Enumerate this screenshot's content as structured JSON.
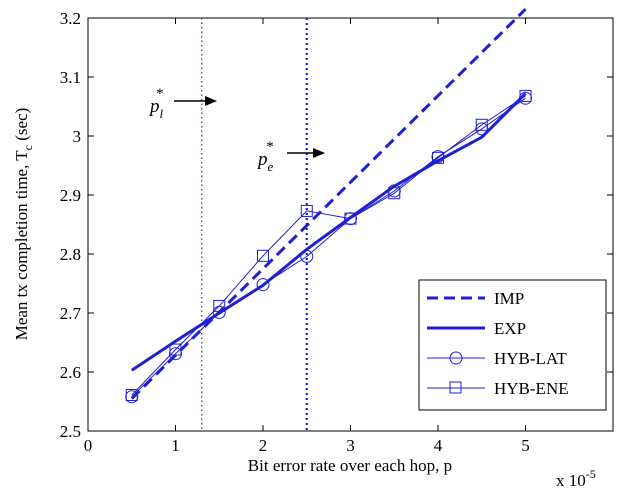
{
  "chart_data": {
    "type": "line",
    "title": "",
    "xlabel": "Bit error rate over each hop, p",
    "ylabel": "Mean tx completion time, T",
    "ylabel_sub": "c",
    "ylabel_unit": " (sec)",
    "x_multiplier": "x 10",
    "x_multiplier_exp": "-5",
    "xlim": [
      0,
      6
    ],
    "ylim": [
      2.5,
      3.2
    ],
    "xticks": [
      "0",
      "1",
      "2",
      "3",
      "4",
      "5"
    ],
    "yticks": [
      "2.5",
      "2.6",
      "2.7",
      "2.8",
      "2.9",
      "3",
      "3.1",
      "3.2"
    ],
    "grid": false,
    "legend_position": "bottom-right",
    "series": [
      {
        "name": "IMP",
        "style": "dashed",
        "marker": "none",
        "color": "#1f1fd6",
        "x": [
          0.5,
          5.0
        ],
        "y": [
          2.555,
          3.215
        ]
      },
      {
        "name": "EXP",
        "style": "solid-thick",
        "marker": "none",
        "color": "#1f1fd6",
        "x": [
          0.5,
          1.0,
          1.5,
          2.0,
          2.5,
          3.0,
          3.5,
          4.0,
          4.5,
          5.0
        ],
        "y": [
          2.603,
          2.652,
          2.7,
          2.747,
          2.808,
          2.862,
          2.915,
          2.958,
          2.998,
          3.072
        ]
      },
      {
        "name": "HYB-LAT",
        "style": "solid-thin",
        "marker": "circle",
        "color": "#1f1fd6",
        "x": [
          0.5,
          1.0,
          1.5,
          2.0,
          2.5,
          3.0,
          3.5,
          4.0,
          4.5,
          5.0
        ],
        "y": [
          2.558,
          2.631,
          2.701,
          2.748,
          2.796,
          2.86,
          2.907,
          2.965,
          3.012,
          3.064
        ]
      },
      {
        "name": "HYB-ENE",
        "style": "solid-thin",
        "marker": "square",
        "color": "#1f1fd6",
        "x": [
          0.5,
          1.0,
          1.5,
          2.0,
          2.5,
          3.0,
          3.5,
          4.0,
          4.5,
          5.0
        ],
        "y": [
          2.561,
          2.638,
          2.712,
          2.797,
          2.873,
          2.86,
          2.903,
          2.963,
          3.019,
          3.068
        ]
      }
    ],
    "vlines": [
      {
        "x": 1.3,
        "style": "dotted-thin",
        "color": "#1f1fd6"
      },
      {
        "x": 2.5,
        "style": "dotted-thick",
        "color": "#1f1fd6"
      }
    ],
    "annotations": [
      {
        "base": "p",
        "sub": "l",
        "sup": "*"
      },
      {
        "base": "p",
        "sub": "e",
        "sup": "*"
      }
    ]
  }
}
